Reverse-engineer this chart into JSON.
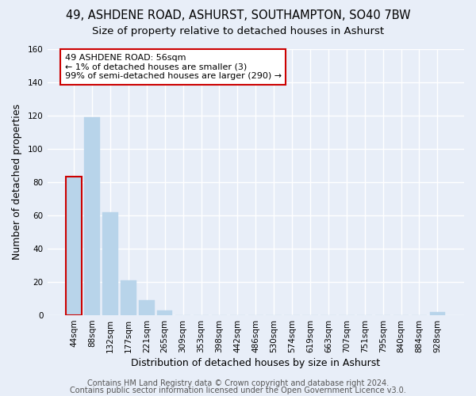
{
  "title": "49, ASHDENE ROAD, ASHURST, SOUTHAMPTON, SO40 7BW",
  "subtitle": "Size of property relative to detached houses in Ashurst",
  "xlabel": "Distribution of detached houses by size in Ashurst",
  "ylabel": "Number of detached properties",
  "footer_line1": "Contains HM Land Registry data © Crown copyright and database right 2024.",
  "footer_line2": "Contains public sector information licensed under the Open Government Licence v3.0.",
  "bin_labels": [
    "44sqm",
    "88sqm",
    "132sqm",
    "177sqm",
    "221sqm",
    "265sqm",
    "309sqm",
    "353sqm",
    "398sqm",
    "442sqm",
    "486sqm",
    "530sqm",
    "574sqm",
    "619sqm",
    "663sqm",
    "707sqm",
    "751sqm",
    "795sqm",
    "840sqm",
    "884sqm",
    "928sqm"
  ],
  "bar_values": [
    83,
    119,
    62,
    21,
    9,
    3,
    0,
    0,
    0,
    0,
    0,
    0,
    0,
    0,
    0,
    0,
    0,
    0,
    0,
    0,
    2
  ],
  "bar_color": "#b8d4ea",
  "highlight_bar_index": 0,
  "highlight_bar_edge_color": "#cc0000",
  "annotation_text": "49 ASHDENE ROAD: 56sqm\n← 1% of detached houses are smaller (3)\n99% of semi-detached houses are larger (290) →",
  "annotation_box_edge_color": "#cc0000",
  "ylim": [
    0,
    160
  ],
  "yticks": [
    0,
    20,
    40,
    60,
    80,
    100,
    120,
    140,
    160
  ],
  "background_color": "#e8eef8",
  "plot_bg_color": "#e8eef8",
  "grid_color": "#ffffff",
  "title_fontsize": 10.5,
  "subtitle_fontsize": 9.5,
  "axis_label_fontsize": 9,
  "tick_fontsize": 7.5,
  "footer_fontsize": 7
}
